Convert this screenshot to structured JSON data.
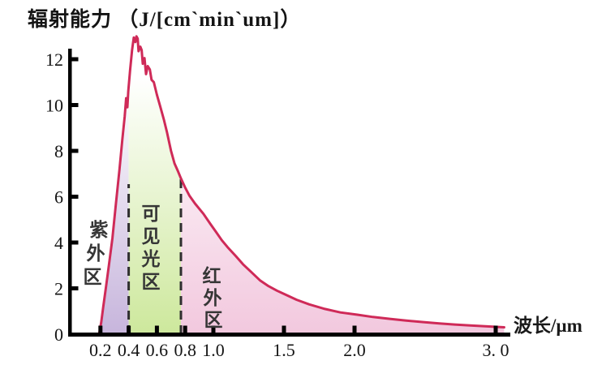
{
  "title": "辐射能力 （J/[cm`min`um]）",
  "x_axis_label": "波长/µm",
  "colors": {
    "curve": "#cf2a58",
    "axis": "#000000",
    "divider": "#2f2f2f",
    "text": "#141414",
    "uv_fill": "#c7b5dc",
    "visible_fill": "#cde89c",
    "infrared_fill": "#f2c8de"
  },
  "chart_data": {
    "type": "area",
    "title": "辐射能力 （J/[cm`min`um]）",
    "xlabel": "波长/µm",
    "ylabel": "辐射能力",
    "xlim": [
      0,
      3.1
    ],
    "ylim": [
      0,
      12.5
    ],
    "grid": false,
    "legend_position": "none",
    "x_tick_values": [
      0.2,
      0.4,
      0.6,
      0.8,
      1.0,
      1.5,
      2.0,
      3.0
    ],
    "x_tick_labels": [
      "0.2",
      "0.4",
      "0.6",
      "0.8",
      "1.0",
      "1.5",
      "2.0",
      "3. 0"
    ],
    "y_tick_values": [
      0,
      2,
      4,
      6,
      8,
      10,
      12
    ],
    "y_tick_labels": [
      "0",
      "2",
      "4",
      "6",
      "8",
      "10",
      "12"
    ],
    "curve_points": [
      [
        0.19,
        0
      ],
      [
        0.205,
        0.5
      ],
      [
        0.22,
        1.2
      ],
      [
        0.24,
        2.1
      ],
      [
        0.26,
        3.0
      ],
      [
        0.285,
        4.2
      ],
      [
        0.31,
        5.7
      ],
      [
        0.335,
        7.2
      ],
      [
        0.355,
        8.5
      ],
      [
        0.372,
        9.5
      ],
      [
        0.382,
        10.3
      ],
      [
        0.391,
        9.9
      ],
      [
        0.397,
        10.6
      ],
      [
        0.41,
        11.5
      ],
      [
        0.424,
        12.4
      ],
      [
        0.436,
        12.95
      ],
      [
        0.447,
        12.75
      ],
      [
        0.455,
        13.0
      ],
      [
        0.464,
        12.9
      ],
      [
        0.47,
        12.35
      ],
      [
        0.482,
        12.55
      ],
      [
        0.492,
        12.4
      ],
      [
        0.5,
        11.8
      ],
      [
        0.512,
        12.05
      ],
      [
        0.523,
        11.35
      ],
      [
        0.535,
        11.7
      ],
      [
        0.55,
        11.55
      ],
      [
        0.562,
        11.1
      ],
      [
        0.578,
        11.0
      ],
      [
        0.6,
        10.45
      ],
      [
        0.625,
        9.9
      ],
      [
        0.65,
        9.35
      ],
      [
        0.672,
        8.8
      ],
      [
        0.7,
        8.0
      ],
      [
        0.725,
        7.45
      ],
      [
        0.75,
        7.1
      ],
      [
        0.77,
        6.8
      ],
      [
        0.8,
        6.4
      ],
      [
        0.83,
        6.05
      ],
      [
        0.87,
        5.7
      ],
      [
        0.93,
        5.25
      ],
      [
        0.98,
        4.8
      ],
      [
        1.02,
        4.45
      ],
      [
        1.06,
        4.1
      ],
      [
        1.1,
        3.8
      ],
      [
        1.16,
        3.4
      ],
      [
        1.21,
        3.05
      ],
      [
        1.27,
        2.7
      ],
      [
        1.33,
        2.35
      ],
      [
        1.39,
        2.1
      ],
      [
        1.45,
        1.9
      ],
      [
        1.51,
        1.73
      ],
      [
        1.59,
        1.5
      ],
      [
        1.68,
        1.3
      ],
      [
        1.79,
        1.1
      ],
      [
        1.9,
        0.95
      ],
      [
        2.02,
        0.85
      ],
      [
        2.13,
        0.75
      ],
      [
        2.25,
        0.67
      ],
      [
        2.36,
        0.6
      ],
      [
        2.48,
        0.53
      ],
      [
        2.6,
        0.47
      ],
      [
        2.71,
        0.42
      ],
      [
        2.82,
        0.38
      ],
      [
        2.94,
        0.34
      ],
      [
        3.06,
        0.3
      ]
    ],
    "bands": [
      {
        "key": "uv",
        "label": "紫外区",
        "from": 0.19,
        "to": 0.4,
        "fill": "#c7b5dc"
      },
      {
        "key": "visible",
        "label": "可见光区",
        "from": 0.4,
        "to": 0.77,
        "fill": "#cde89c"
      },
      {
        "key": "infrared",
        "label": "红外区",
        "from": 0.77,
        "to": 3.06,
        "fill": "#f2c8de"
      }
    ],
    "dividers": [
      {
        "x": 0.4,
        "top_value": 6.55
      },
      {
        "x": 0.77,
        "top_value": 6.8
      }
    ]
  }
}
